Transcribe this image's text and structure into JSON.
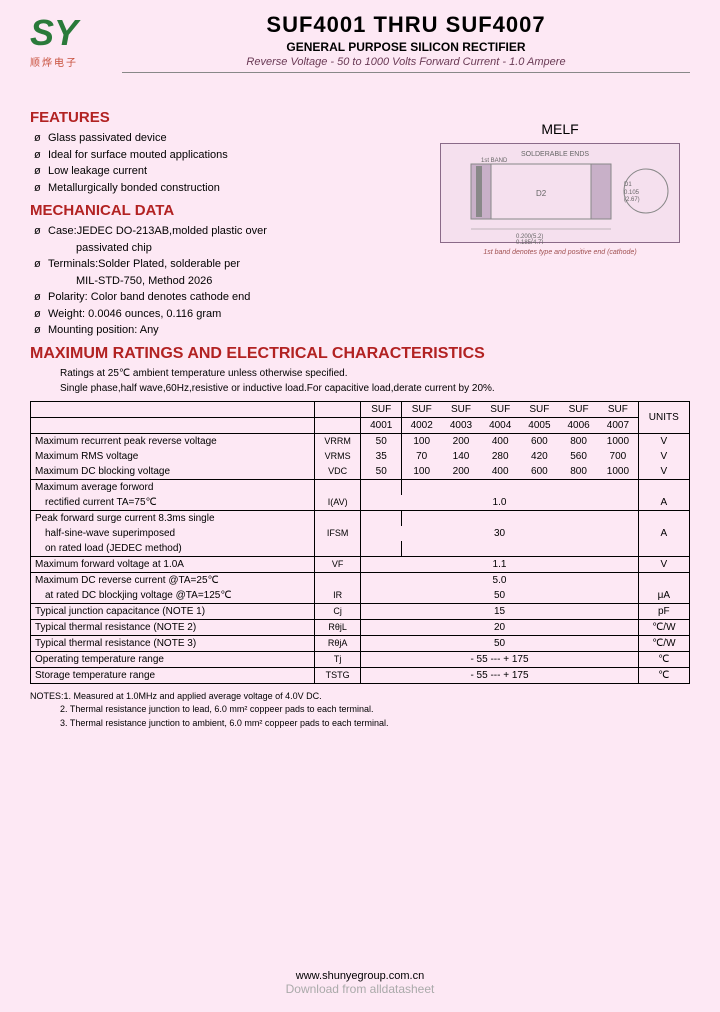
{
  "header": {
    "logo_text": "SY",
    "logo_sub": "顺烨电子",
    "title": "SUF4001 THRU SUF4007",
    "subtitle": "GENERAL PURPOSE SILICON RECTIFIER",
    "spec_line": "Reverse Voltage - 50 to 1000 Volts   Forward Current - 1.0 Ampere"
  },
  "features": {
    "title": "FEATURES",
    "items": [
      "Glass passivated device",
      "Ideal for surface mouted applications",
      "Low leakage current",
      "Metallurgically bonded construction"
    ]
  },
  "mechanical": {
    "title": "MECHANICAL DATA",
    "items": [
      {
        "text": "Case:JEDEC DO-213AB,molded plastic over",
        "indent": false
      },
      {
        "text": "passivated chip",
        "indent": true
      },
      {
        "text": "Terminals:Solder Plated, solderable per",
        "indent": false
      },
      {
        "text": "MIL-STD-750, Method 2026",
        "indent": true
      },
      {
        "text": "Polarity: Color band denotes cathode end",
        "indent": false
      },
      {
        "text": "Weight: 0.0046 ounces, 0.116  gram",
        "indent": false
      },
      {
        "text": "Mounting position: Any",
        "indent": false
      }
    ]
  },
  "diagram": {
    "label": "MELF",
    "top_text": "SOLDERABLE ENDS",
    "note": "1st band denotes type and positive end (cathode)"
  },
  "ratings": {
    "title": "MAXIMUM RATINGS AND ELECTRICAL CHARACTERISTICS",
    "note1": "Ratings at 25℃ ambient temperature unless otherwise specified.",
    "note2": "Single phase,half wave,60Hz,resistive or inductive load.For capacitive load,derate current by 20%."
  },
  "table": {
    "head_top": [
      "SUF",
      "SUF",
      "SUF",
      "SUF",
      "SUF",
      "SUF",
      "SUF"
    ],
    "head_bot": [
      "4001",
      "4002",
      "4003",
      "4004",
      "4005",
      "4006",
      "4007"
    ],
    "units_label": "UNITS",
    "rows": [
      {
        "param": "Maximum recurrent peak reverse voltage",
        "symbol": "VRRM",
        "vals": [
          "50",
          "100",
          "200",
          "400",
          "600",
          "800",
          "1000"
        ],
        "unit": "V",
        "bt": false
      },
      {
        "param": "Maximum RMS voltage",
        "symbol": "VRMS",
        "vals": [
          "35",
          "70",
          "140",
          "280",
          "420",
          "560",
          "700"
        ],
        "unit": "V",
        "bt": false
      },
      {
        "param": "Maximum DC blocking voltage",
        "symbol": "VDC",
        "vals": [
          "50",
          "100",
          "200",
          "400",
          "600",
          "800",
          "1000"
        ],
        "unit": "V",
        "bt": false
      },
      {
        "param": "Maximum average forword",
        "symbol": "",
        "vals": [
          "",
          "",
          "",
          "",
          "",
          "",
          ""
        ],
        "unit": "",
        "bt": true
      },
      {
        "param": "   rectified current   TA=75℃",
        "symbol": "I(AV)",
        "vals": [
          "",
          "",
          "",
          "1.0",
          "",
          "",
          ""
        ],
        "span": true,
        "unit": "A",
        "bt": false
      },
      {
        "param": "Peak forward surge current 8.3ms single",
        "symbol": "",
        "vals": [
          "",
          "",
          "",
          "",
          "",
          "",
          ""
        ],
        "unit": "",
        "bt": true
      },
      {
        "param": "   half-sine-wave superimposed",
        "symbol": "IFSM",
        "vals": [
          "",
          "",
          "",
          "30",
          "",
          "",
          ""
        ],
        "span": true,
        "unit": "A",
        "bt": false
      },
      {
        "param": "   on rated load (JEDEC method)",
        "symbol": "",
        "vals": [
          "",
          "",
          "",
          "",
          "",
          "",
          ""
        ],
        "unit": "",
        "bt": false
      },
      {
        "param": "Maximum  forward voltage at 1.0A",
        "symbol": "VF",
        "vals": [
          "",
          "",
          "",
          "1.1",
          "",
          "",
          ""
        ],
        "span": true,
        "unit": "V",
        "bt": true
      },
      {
        "param": "Maximum DC reverse current   @TA=25℃",
        "symbol": "",
        "vals": [
          "",
          "",
          "",
          "5.0",
          "",
          "",
          ""
        ],
        "span": true,
        "unit": "",
        "bt": true
      },
      {
        "param": "   at rated DC blockjing voltage  @TA=125℃",
        "symbol": "IR",
        "vals": [
          "",
          "",
          "",
          "50",
          "",
          "",
          ""
        ],
        "span": true,
        "unit": "μA",
        "bt": false
      },
      {
        "param": "Typical junction capacitance  (NOTE 1)",
        "symbol": "Cj",
        "vals": [
          "",
          "",
          "",
          "15",
          "",
          "",
          ""
        ],
        "span": true,
        "unit": "pF",
        "bt": true
      },
      {
        "param": "Typical thermal resistance    (NOTE 2)",
        "symbol": "RθjL",
        "vals": [
          "",
          "",
          "",
          "20",
          "",
          "",
          ""
        ],
        "span": true,
        "unit": "℃/W",
        "bt": true
      },
      {
        "param": "Typical thermal resistance    (NOTE 3)",
        "symbol": "RθjA",
        "vals": [
          "",
          "",
          "",
          "50",
          "",
          "",
          ""
        ],
        "span": true,
        "unit": "℃/W",
        "bt": true
      },
      {
        "param": "Operating temperature range",
        "symbol": "Tj",
        "vals": [
          "",
          "",
          "",
          "- 55 --- + 175",
          "",
          "",
          ""
        ],
        "span": true,
        "unit": "℃",
        "bt": true
      },
      {
        "param": "Storage temperature range",
        "symbol": "TSTG",
        "vals": [
          "",
          "",
          "",
          "- 55 --- + 175",
          "",
          "",
          ""
        ],
        "span": true,
        "unit": "℃",
        "bt": true
      }
    ]
  },
  "notes": {
    "n1": "NOTES:1. Measured at 1.0MHz and applied average voltage of 4.0V DC.",
    "n2": "2. Thermal resistance junction to lead, 6.0 mm² coppeer pads to each terminal.",
    "n3": "3. Thermal resistance junction to ambient, 6.0 mm² coppeer pads to each terminal."
  },
  "footer": {
    "url": "www.shunyegroup.com.cn",
    "dl": "Download from alldatasheet"
  }
}
